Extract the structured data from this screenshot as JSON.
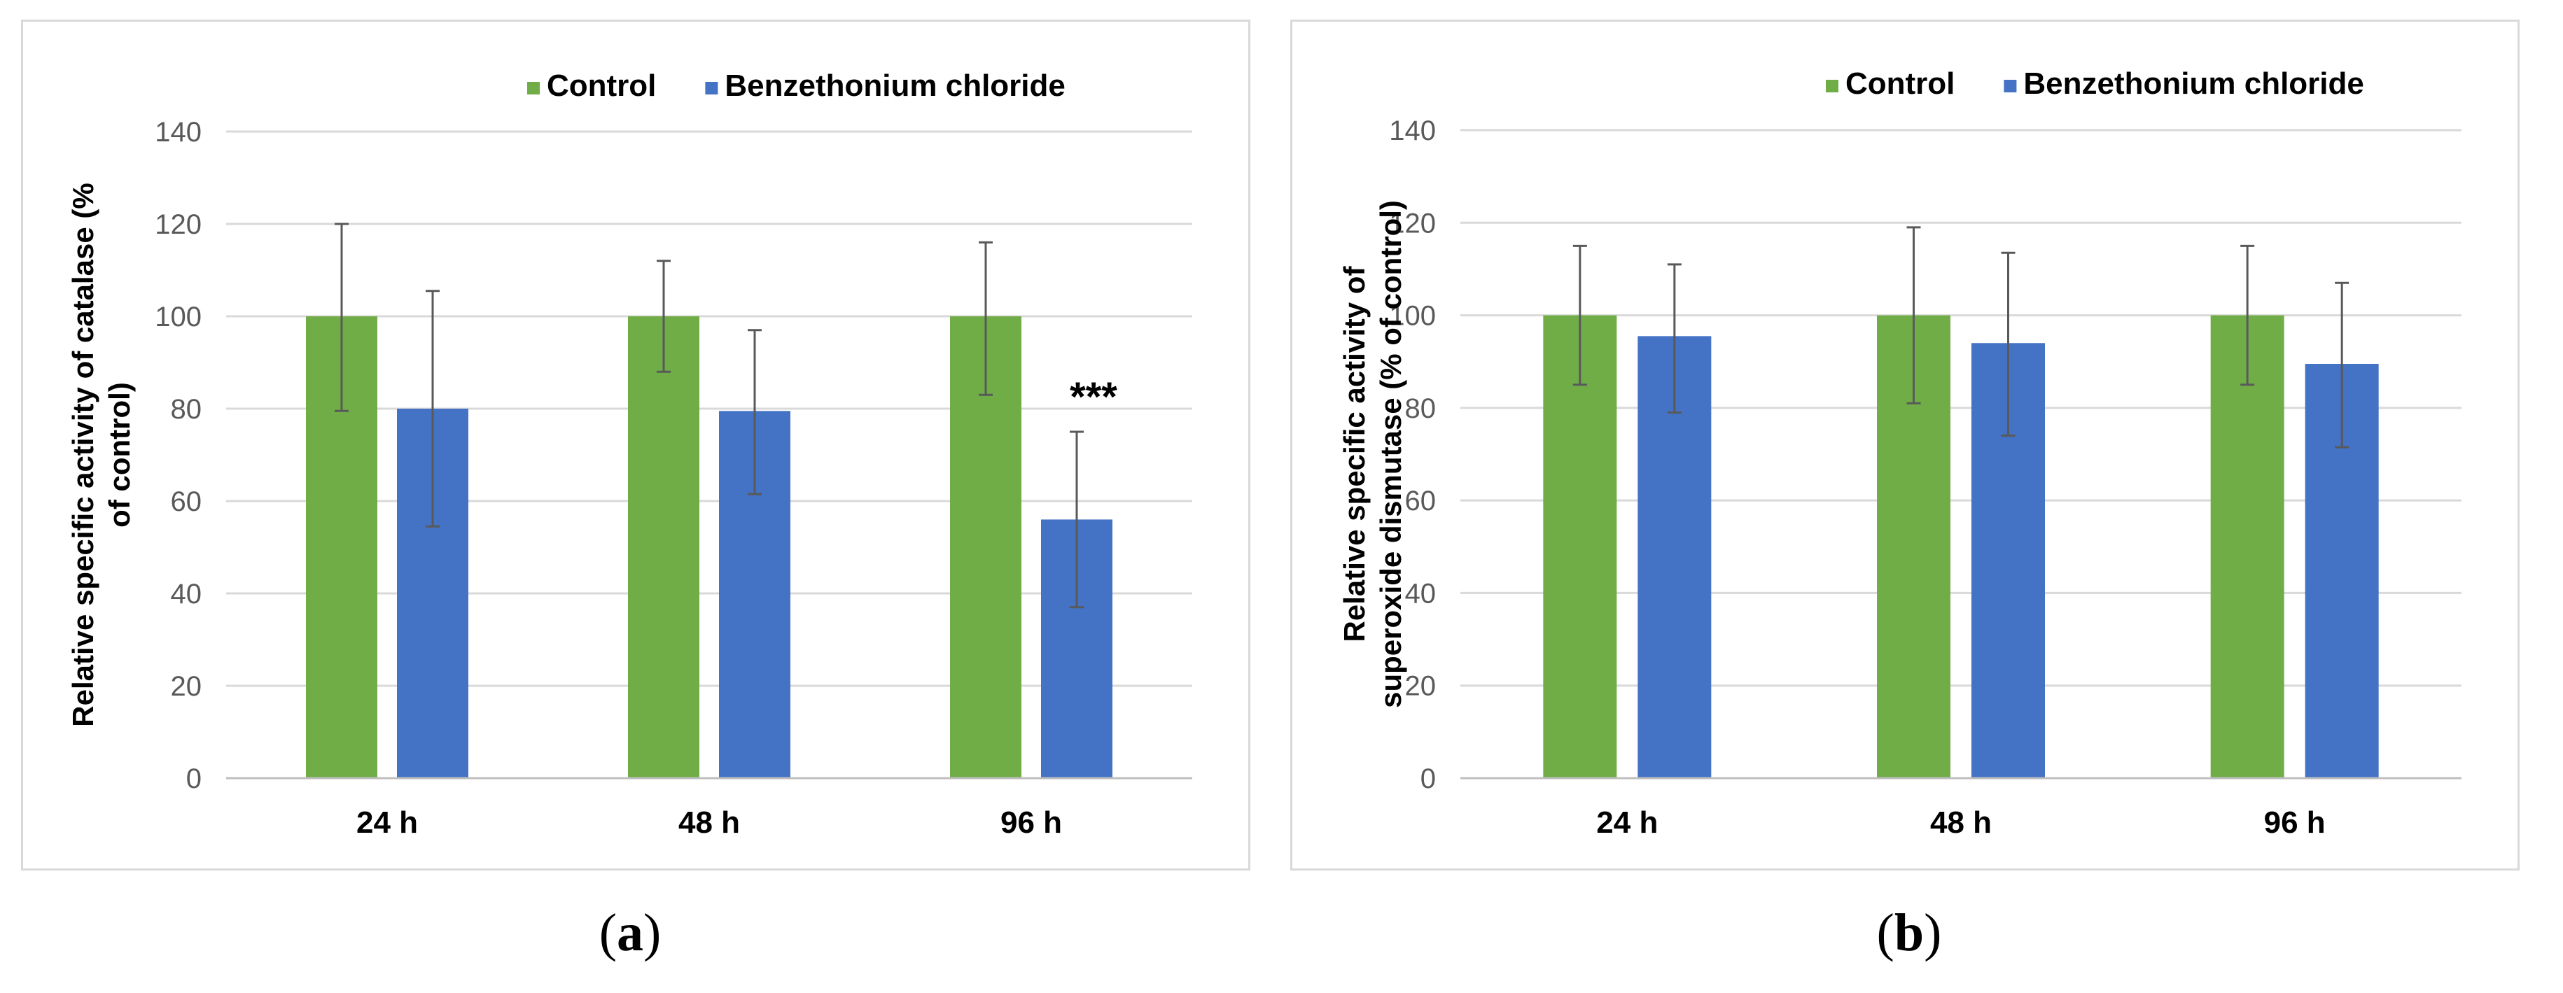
{
  "chart_data": [
    {
      "id": "a",
      "type": "bar",
      "caption": "a",
      "categories": [
        "24 h",
        "48 h",
        "96 h"
      ],
      "ylabel_lines": [
        "Relative specific activity of catalase (%",
        "of control)"
      ],
      "xlabel": "",
      "ylim": [
        0,
        140
      ],
      "yticks": [
        0,
        20,
        40,
        60,
        80,
        100,
        120,
        140
      ],
      "grid": true,
      "legend_position": "top-right",
      "series": [
        {
          "name": "Control",
          "color": "#70ad47",
          "values": [
            100,
            100,
            100
          ],
          "err_low": [
            79.5,
            88,
            83
          ],
          "err_high": [
            120,
            112,
            116
          ]
        },
        {
          "name": "Benzethonium chloride",
          "color": "#4472c4",
          "values": [
            80,
            79.5,
            56
          ],
          "err_low": [
            54.5,
            61.5,
            37
          ],
          "err_high": [
            105.5,
            97,
            75
          ]
        }
      ],
      "annotations": [
        {
          "series": 1,
          "category": 2,
          "text": "***"
        }
      ]
    },
    {
      "id": "b",
      "type": "bar",
      "caption": "b",
      "categories": [
        "24 h",
        "48 h",
        "96 h"
      ],
      "ylabel_lines": [
        "Relative specific activity of",
        "superoxide dismutase (% of control)"
      ],
      "xlabel": "",
      "ylim": [
        0,
        140
      ],
      "yticks": [
        0,
        20,
        40,
        60,
        80,
        100,
        120,
        140
      ],
      "grid": true,
      "legend_position": "top-right",
      "series": [
        {
          "name": "Control",
          "color": "#70ad47",
          "values": [
            100,
            100,
            100
          ],
          "err_low": [
            85,
            81,
            85
          ],
          "err_high": [
            115,
            119,
            115
          ]
        },
        {
          "name": "Benzethonium chloride",
          "color": "#4472c4",
          "values": [
            95.5,
            94,
            89.5
          ],
          "err_low": [
            79,
            74,
            71.5
          ],
          "err_high": [
            111,
            113.5,
            107
          ]
        }
      ],
      "annotations": []
    }
  ]
}
